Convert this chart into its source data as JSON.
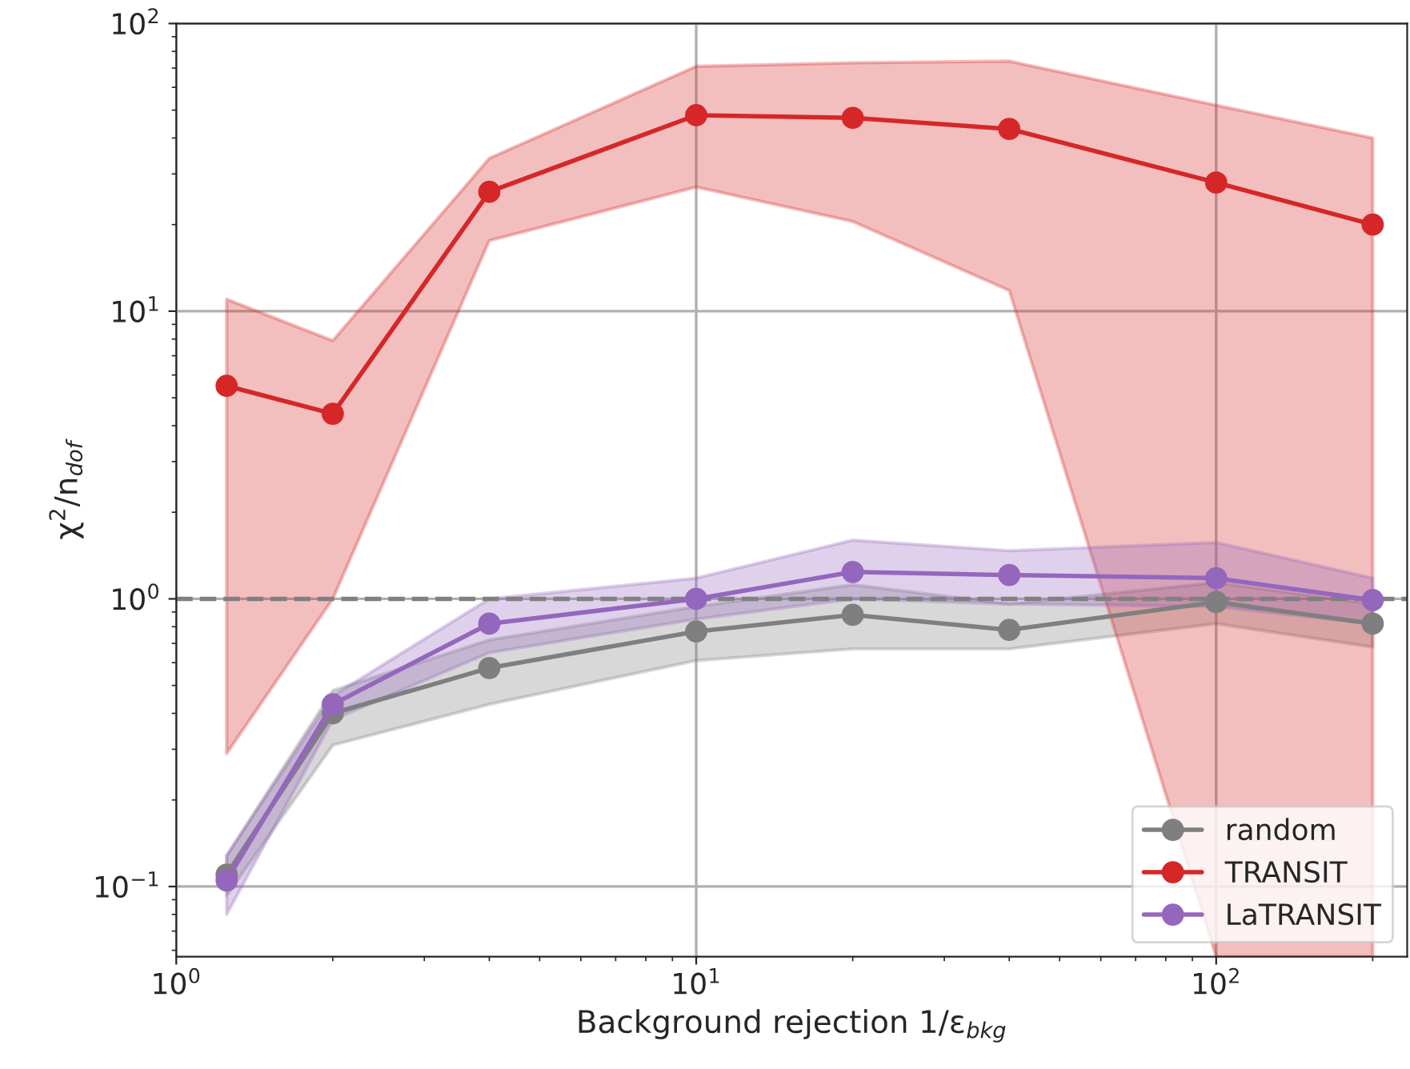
{
  "chart_data": {
    "type": "line",
    "xlabel": "Background rejection 1/ε$_{bkg}$",
    "ylabel": "χ$^{2}$/n$_{dof}$",
    "x": [
      1.25,
      2,
      4,
      10,
      20,
      40,
      100,
      200
    ],
    "series": [
      {
        "name": "random",
        "color": "#7f7f7f",
        "values": [
          0.11,
          0.4,
          0.575,
          0.77,
          0.88,
          0.78,
          0.975,
          0.82
        ],
        "lower": [
          0.093,
          0.31,
          0.43,
          0.61,
          0.67,
          0.67,
          0.82,
          0.68
        ],
        "upper": [
          0.128,
          0.48,
          0.72,
          0.94,
          1.12,
          0.96,
          1.14,
          0.96
        ]
      },
      {
        "name": "TRANSIT",
        "color": "#d62728",
        "values": [
          5.5,
          4.4,
          26,
          48,
          47,
          43,
          28,
          20
        ],
        "lower": [
          0.29,
          1.0,
          17.6,
          27,
          20.5,
          11.8,
          0.057,
          0.057
        ],
        "upper": [
          11,
          7.9,
          34,
          71,
          73,
          74,
          52,
          40
        ]
      },
      {
        "name": "LaTRANSIT",
        "color": "#9467bd",
        "values": [
          0.105,
          0.43,
          0.82,
          1.0,
          1.24,
          1.21,
          1.18,
          0.99
        ],
        "lower": [
          0.08,
          0.38,
          0.65,
          0.85,
          1.0,
          0.96,
          0.94,
          0.82
        ],
        "upper": [
          0.128,
          0.46,
          1.0,
          1.18,
          1.6,
          1.47,
          1.57,
          1.18
        ]
      }
    ],
    "log": "xy",
    "xlim": [
      1.0,
      233
    ],
    "ylim": [
      0.057,
      100
    ],
    "xticks": [
      {
        "value": 1,
        "label": "10$^{0}$"
      },
      {
        "value": 10,
        "label": "10$^{1}$"
      },
      {
        "value": 100,
        "label": "10$^{2}$"
      }
    ],
    "yticks": [
      {
        "value": 0.1,
        "label": "10$^{−1}$"
      },
      {
        "value": 1,
        "label": "10$^{0}$"
      },
      {
        "value": 10,
        "label": "10$^{1}$"
      },
      {
        "value": 100,
        "label": "10$^{2}$"
      }
    ],
    "ref_lines": [
      {
        "axis": "y",
        "value": 1,
        "color": "#808080",
        "line_style": "dashed"
      }
    ],
    "grid": true,
    "legend": "bottom right",
    "marker": "circle",
    "line_style": "solid"
  }
}
